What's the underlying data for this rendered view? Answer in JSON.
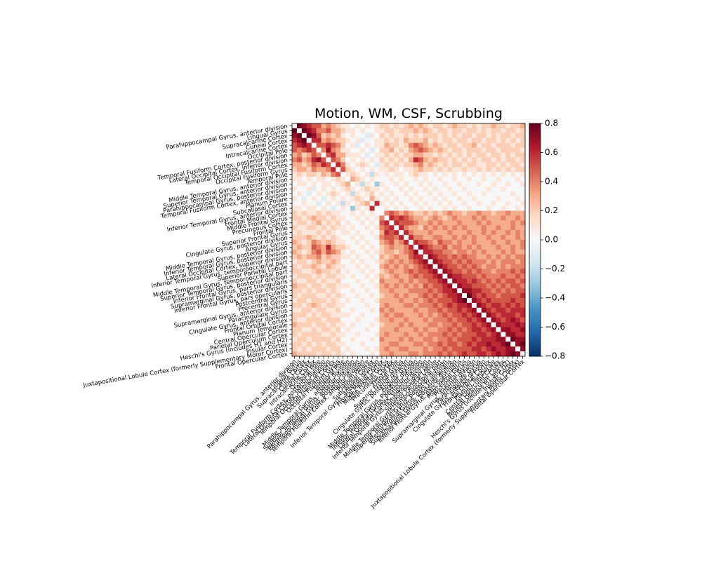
{
  "chart_data": {
    "type": "heatmap",
    "title": "Motion, WM, CSF, Scrubbing",
    "categories": [
      "Parahippocampal Gyrus, anterior division",
      "Lingual Gyrus",
      "Supracalcarine Cortex",
      "Cuneal Cortex",
      "Intracalcarine Cortex",
      "Occipital Pole",
      "Temporal Fusiform Cortex, posterior division",
      "Lateral Occipital Cortex, inferior division",
      "Temporal Occipital Fusiform Cortex",
      "Occipital Fusiform Gyrus",
      "Temporal Pole",
      "Middle Temporal Gyrus, anterior division",
      "Superior Temporal Gyrus, anterior division",
      "Parahippocampal Gyrus, posterior division",
      "Temporal Fusiform Cortex, anterior division",
      "Planum Polare",
      "Subcallosal Cortex",
      "Inferior Temporal Gyrus, anterior division",
      "Frontal Medial Cortex",
      "Middle Frontal Gyrus",
      "Precuneous Cortex",
      "Frontal Pole",
      "Superior Frontal Gyrus",
      "Cingulate Gyrus, posterior division",
      "Angular Gyrus",
      "Middle Temporal Gyrus, posterior division",
      "Inferior Temporal Gyrus, posterior division",
      "Lateral Occipital Cortex, superior division",
      "Inferior Temporal Gyrus, temporooccipital part",
      "Superior Parietal Lobule",
      "Middle Temporal Gyrus, temporooccipital part",
      "Superior Temporal Gyrus, posterior division",
      "Inferior Frontal Gyrus, pars triangularis",
      "Supramarginal Gyrus, posterior division",
      "Inferior Frontal Gyrus, pars opercularis",
      "Postcentral Gyrus",
      "Precentral Gyrus",
      "Supramarginal Gyrus, anterior division",
      "Paracingulate Gyrus",
      "Cingulate Gyrus, anterior division",
      "Frontal Orbital Cortex",
      "Planum Temporale",
      "Central Opercular Cortex",
      "Parietal Operculum Cortex",
      "Heschl's Gyrus (includes H1 and H2)",
      "Insular Cortex",
      "Juxtapositional Lobule Cortex (formerly Supplementary Motor Cortex)",
      "Frontal Opercular Cortex"
    ],
    "values": [
      [
        0
      ],
      [
        0.8,
        0
      ],
      [
        0.7,
        0.8,
        0
      ],
      [
        0.6,
        0.7,
        0.8,
        0
      ],
      [
        0.5,
        0.6,
        0.7,
        0.6,
        0
      ],
      [
        0.5,
        0.4,
        0.5,
        0.6,
        0.5,
        0
      ],
      [
        0.3,
        0.4,
        0.2,
        0.3,
        0.5,
        0.4,
        0
      ],
      [
        0.4,
        0.5,
        0.3,
        0.4,
        0.6,
        0.7,
        0.5,
        0
      ],
      [
        0.3,
        0.3,
        0.2,
        0.3,
        0.5,
        0.4,
        0.6,
        0.5,
        0
      ],
      [
        0.2,
        0.3,
        0.3,
        0.2,
        0.4,
        0.3,
        0.3,
        0.4,
        0.6,
        0
      ],
      [
        0.1,
        0.2,
        0.1,
        0.2,
        0.2,
        0.1,
        0.3,
        0.2,
        0.4,
        0.5,
        0
      ],
      [
        0.1,
        0.1,
        0.0,
        0.1,
        0.0,
        0.1,
        0.1,
        0.0,
        0.1,
        0.2,
        0.1,
        0
      ],
      [
        0.0,
        0.1,
        0.1,
        0.0,
        0.1,
        0.0,
        0.1,
        0.1,
        0.0,
        0.1,
        0.2,
        0.3,
        0
      ],
      [
        0.1,
        0.0,
        0.0,
        0.1,
        -0.1,
        0.0,
        0.1,
        0.0,
        0.1,
        0.0,
        0.1,
        0.2,
        0.1,
        0
      ],
      [
        0.0,
        0.1,
        0.0,
        -0.1,
        0.0,
        0.1,
        0.0,
        0.1,
        0.2,
        0.1,
        0.0,
        0.1,
        -0.2,
        0.1,
        0
      ],
      [
        0.1,
        0.0,
        -0.1,
        0.0,
        0.1,
        0.0,
        -0.1,
        0.0,
        0.1,
        0.0,
        0.1,
        0.0,
        0.1,
        0.2,
        0.1,
        0
      ],
      [
        0.0,
        0.0,
        0.1,
        0.0,
        0.0,
        -0.1,
        0.0,
        0.1,
        0.0,
        0.1,
        -0.2,
        0.1,
        0.0,
        0.1,
        0.2,
        0.3,
        0
      ],
      [
        0.1,
        0.1,
        0.0,
        0.1,
        0.1,
        0.0,
        0.1,
        0.0,
        -0.1,
        0.0,
        0.1,
        0.0,
        -0.3,
        0.1,
        0.0,
        0.1,
        0.6,
        0
      ],
      [
        0.2,
        0.1,
        0.2,
        0.1,
        0.1,
        0.2,
        0.1,
        0.2,
        0.1,
        0.1,
        0.0,
        0.0,
        0.1,
        0.0,
        0.1,
        0.0,
        0.1,
        0.0,
        0
      ],
      [
        0.2,
        0.2,
        0.1,
        0.2,
        0.3,
        0.2,
        0.2,
        0.1,
        0.2,
        0.1,
        0.1,
        0.0,
        0.0,
        0.1,
        0.0,
        0.1,
        0.0,
        0.1,
        0.4,
        0
      ],
      [
        0.1,
        0.2,
        0.2,
        0.1,
        0.2,
        0.3,
        0.1,
        0.2,
        0.1,
        0.2,
        0.0,
        0.1,
        0.0,
        0.0,
        0.1,
        0.0,
        0.1,
        0.0,
        0.5,
        0.6,
        0
      ],
      [
        0.2,
        0.1,
        0.1,
        0.2,
        0.2,
        0.1,
        0.2,
        0.1,
        0.2,
        0.1,
        0.1,
        0.0,
        0.1,
        0.0,
        0.0,
        0.1,
        0.0,
        0.1,
        0.4,
        0.5,
        0.6,
        0
      ],
      [
        0.1,
        0.2,
        0.1,
        0.1,
        0.1,
        0.2,
        0.1,
        0.2,
        0.1,
        0.0,
        0.1,
        0.1,
        0.0,
        0.1,
        0.0,
        0.0,
        0.1,
        0.0,
        0.3,
        0.6,
        0.5,
        0.6,
        0
      ],
      [
        0.2,
        0.2,
        0.2,
        0.3,
        0.2,
        0.1,
        0.2,
        0.1,
        0.2,
        0.1,
        0.0,
        0.0,
        0.1,
        0.0,
        0.1,
        0.0,
        0.0,
        0.1,
        0.4,
        0.5,
        0.5,
        0.4,
        0.6,
        0
      ],
      [
        0.3,
        0.2,
        0.1,
        0.2,
        0.4,
        0.3,
        0.2,
        0.3,
        0.2,
        0.1,
        0.1,
        0.0,
        0.0,
        0.1,
        0.0,
        0.1,
        0.0,
        0.0,
        0.3,
        0.4,
        0.5,
        0.3,
        0.4,
        0.6,
        0
      ],
      [
        0.2,
        0.3,
        0.2,
        0.2,
        0.5,
        0.4,
        0.3,
        0.6,
        0.3,
        0.2,
        0.2,
        0.1,
        0.0,
        0.0,
        0.1,
        0.0,
        0.1,
        0.0,
        0.2,
        0.3,
        0.4,
        0.3,
        0.3,
        0.4,
        0.6,
        0
      ],
      [
        0.3,
        0.2,
        0.1,
        0.2,
        0.4,
        0.5,
        0.3,
        0.5,
        0.4,
        0.3,
        0.1,
        0.0,
        0.1,
        0.0,
        0.0,
        0.1,
        0.0,
        0.1,
        0.2,
        0.3,
        0.3,
        0.2,
        0.3,
        0.4,
        0.5,
        0.7,
        0
      ],
      [
        0.2,
        0.3,
        0.2,
        0.3,
        0.3,
        0.4,
        0.2,
        0.3,
        0.2,
        0.2,
        0.1,
        0.1,
        0.0,
        0.1,
        0.0,
        0.0,
        0.1,
        0.0,
        0.3,
        0.2,
        0.3,
        0.4,
        0.3,
        0.3,
        0.5,
        0.6,
        0.6,
        0
      ],
      [
        0.1,
        0.2,
        0.2,
        0.1,
        0.2,
        0.3,
        0.2,
        0.2,
        0.3,
        0.2,
        0.0,
        0.0,
        0.1,
        0.0,
        0.1,
        0.0,
        0.0,
        0.1,
        0.2,
        0.3,
        0.4,
        0.3,
        0.4,
        0.3,
        0.4,
        0.5,
        0.6,
        0.7,
        0
      ],
      [
        0.2,
        0.1,
        0.2,
        0.2,
        0.3,
        0.2,
        0.1,
        0.3,
        0.2,
        0.1,
        0.1,
        0.0,
        0.0,
        0.1,
        0.0,
        0.1,
        0.0,
        0.0,
        0.3,
        0.4,
        0.3,
        0.4,
        0.3,
        0.4,
        0.3,
        0.4,
        0.5,
        0.6,
        0.7,
        0
      ],
      [
        0.2,
        0.2,
        0.1,
        0.1,
        0.2,
        0.3,
        0.2,
        0.2,
        0.1,
        0.2,
        0.0,
        0.1,
        0.0,
        0.0,
        0.1,
        0.0,
        0.1,
        0.0,
        0.2,
        0.3,
        0.4,
        0.3,
        0.3,
        0.4,
        0.5,
        0.4,
        0.5,
        0.5,
        0.6,
        0.7,
        0
      ],
      [
        0.1,
        0.2,
        0.2,
        0.2,
        0.1,
        0.2,
        0.1,
        0.2,
        0.2,
        0.1,
        0.1,
        0.0,
        0.1,
        0.0,
        0.0,
        0.1,
        0.0,
        0.1,
        0.3,
        0.2,
        0.3,
        0.4,
        0.3,
        0.3,
        0.4,
        0.5,
        0.4,
        0.5,
        0.5,
        0.6,
        0.7,
        0
      ],
      [
        0.2,
        0.1,
        0.1,
        0.2,
        0.2,
        0.1,
        0.2,
        0.1,
        0.1,
        0.2,
        0.0,
        0.0,
        0.0,
        0.1,
        0.0,
        0.0,
        0.1,
        0.0,
        0.4,
        0.3,
        0.3,
        0.3,
        0.4,
        0.3,
        0.4,
        0.3,
        0.4,
        0.4,
        0.5,
        0.5,
        0.6,
        0.7,
        0
      ],
      [
        0.3,
        0.2,
        0.2,
        0.1,
        0.2,
        0.2,
        0.1,
        0.2,
        0.2,
        0.1,
        0.1,
        0.1,
        0.0,
        0.0,
        0.1,
        0.0,
        0.0,
        0.1,
        0.3,
        0.4,
        0.3,
        0.4,
        0.3,
        0.4,
        0.3,
        0.4,
        0.3,
        0.5,
        0.4,
        0.5,
        0.5,
        0.6,
        0.7,
        0
      ],
      [
        0.2,
        0.2,
        0.1,
        0.2,
        0.1,
        0.2,
        0.2,
        0.1,
        0.2,
        0.1,
        0.0,
        0.0,
        0.1,
        0.0,
        0.0,
        0.1,
        0.0,
        0.0,
        0.3,
        0.3,
        0.4,
        0.3,
        0.3,
        0.3,
        0.4,
        0.4,
        0.4,
        0.4,
        0.5,
        0.4,
        0.5,
        0.6,
        0.6,
        0.7,
        0
      ],
      [
        0.2,
        0.1,
        0.2,
        0.2,
        0.2,
        0.1,
        0.1,
        0.2,
        0.1,
        0.2,
        0.1,
        0.0,
        0.0,
        0.1,
        0.0,
        0.0,
        0.1,
        0.0,
        0.2,
        0.3,
        0.3,
        0.4,
        0.3,
        0.4,
        0.3,
        0.3,
        0.4,
        0.5,
        0.4,
        0.5,
        0.4,
        0.5,
        0.6,
        0.6,
        0.7,
        0
      ],
      [
        0.1,
        0.2,
        0.2,
        0.1,
        0.2,
        0.2,
        0.2,
        0.1,
        0.2,
        0.1,
        0.0,
        0.1,
        0.0,
        0.0,
        0.1,
        0.0,
        0.0,
        0.1,
        0.3,
        0.3,
        0.3,
        0.3,
        0.4,
        0.3,
        0.3,
        0.4,
        0.3,
        0.4,
        0.5,
        0.4,
        0.5,
        0.5,
        0.5,
        0.6,
        0.7,
        0.8,
        0
      ],
      [
        0.2,
        0.2,
        0.1,
        0.2,
        0.3,
        0.2,
        0.1,
        0.2,
        0.2,
        0.1,
        0.1,
        0.0,
        0.0,
        0.0,
        0.0,
        0.1,
        0.0,
        0.0,
        0.3,
        0.4,
        0.3,
        0.3,
        0.3,
        0.4,
        0.4,
        0.3,
        0.4,
        0.4,
        0.4,
        0.5,
        0.4,
        0.5,
        0.6,
        0.5,
        0.6,
        0.6,
        0.7,
        0
      ],
      [
        0.1,
        0.1,
        0.2,
        0.2,
        0.1,
        0.2,
        0.2,
        0.1,
        0.1,
        0.2,
        0.0,
        0.0,
        0.1,
        0.0,
        0.0,
        0.0,
        0.1,
        0.0,
        0.4,
        0.3,
        0.4,
        0.3,
        0.3,
        0.3,
        0.3,
        0.4,
        0.3,
        0.3,
        0.4,
        0.4,
        0.5,
        0.4,
        0.5,
        0.5,
        0.6,
        0.5,
        0.6,
        0.7,
        0
      ],
      [
        0.2,
        0.2,
        0.2,
        0.1,
        0.2,
        0.1,
        0.2,
        0.2,
        0.1,
        0.1,
        0.1,
        0.1,
        0.0,
        0.0,
        0.1,
        0.0,
        0.0,
        0.0,
        0.3,
        0.4,
        0.3,
        0.4,
        0.4,
        0.3,
        0.3,
        0.3,
        0.4,
        0.3,
        0.4,
        0.3,
        0.4,
        0.5,
        0.4,
        0.5,
        0.5,
        0.6,
        0.5,
        0.6,
        0.7,
        0
      ],
      [
        0.2,
        0.1,
        0.1,
        0.2,
        0.2,
        0.2,
        0.1,
        0.2,
        0.2,
        0.2,
        0.0,
        0.0,
        0.0,
        0.1,
        0.0,
        0.0,
        0.0,
        0.1,
        0.3,
        0.3,
        0.4,
        0.3,
        0.3,
        0.4,
        0.3,
        0.3,
        0.3,
        0.4,
        0.3,
        0.4,
        0.4,
        0.4,
        0.5,
        0.4,
        0.5,
        0.5,
        0.6,
        0.5,
        0.6,
        0.7,
        0
      ],
      [
        0.3,
        0.2,
        0.2,
        0.2,
        0.1,
        0.2,
        0.2,
        0.1,
        0.2,
        0.1,
        0.1,
        0.0,
        0.1,
        0.0,
        0.0,
        0.0,
        0.1,
        0.0,
        0.2,
        0.3,
        0.3,
        0.3,
        0.4,
        0.3,
        0.4,
        0.3,
        0.3,
        0.3,
        0.4,
        0.4,
        0.3,
        0.4,
        0.4,
        0.5,
        0.4,
        0.5,
        0.5,
        0.6,
        0.5,
        0.6,
        0.7,
        0
      ],
      [
        0.2,
        0.2,
        0.1,
        0.1,
        0.2,
        0.1,
        0.2,
        0.2,
        0.1,
        0.2,
        0.0,
        0.1,
        0.0,
        0.0,
        0.0,
        0.1,
        0.0,
        0.0,
        0.3,
        0.3,
        0.3,
        0.4,
        0.3,
        0.3,
        0.3,
        0.4,
        0.3,
        0.4,
        0.3,
        0.3,
        0.4,
        0.4,
        0.5,
        0.4,
        0.5,
        0.4,
        0.5,
        0.6,
        0.6,
        0.5,
        0.6,
        0.7,
        0
      ],
      [
        0.2,
        0.1,
        0.2,
        0.2,
        0.2,
        0.2,
        0.1,
        0.1,
        0.2,
        0.1,
        0.1,
        0.0,
        0.0,
        0.1,
        0.0,
        0.0,
        0.0,
        0.1,
        0.3,
        0.4,
        0.3,
        0.3,
        0.3,
        0.4,
        0.3,
        0.3,
        0.4,
        0.3,
        0.4,
        0.4,
        0.4,
        0.5,
        0.4,
        0.5,
        0.4,
        0.5,
        0.5,
        0.5,
        0.6,
        0.6,
        0.5,
        0.6,
        0.7,
        0
      ],
      [
        0.1,
        0.2,
        0.2,
        0.1,
        0.2,
        0.2,
        0.2,
        0.2,
        0.1,
        0.2,
        0.0,
        0.0,
        0.1,
        0.0,
        0.0,
        0.0,
        0.1,
        0.0,
        0.4,
        0.3,
        0.3,
        0.3,
        0.4,
        0.3,
        0.4,
        0.3,
        0.3,
        0.4,
        0.4,
        0.3,
        0.4,
        0.4,
        0.5,
        0.4,
        0.5,
        0.5,
        0.5,
        0.6,
        0.5,
        0.6,
        0.6,
        0.6,
        0.7,
        0.7,
        0
      ],
      [
        0.2,
        0.2,
        0.1,
        0.2,
        0.1,
        0.2,
        0.1,
        0.2,
        0.2,
        0.1,
        0.1,
        0.0,
        0.0,
        0.0,
        0.1,
        0.0,
        0.0,
        0.0,
        0.3,
        0.3,
        0.4,
        0.4,
        0.3,
        0.3,
        0.3,
        0.4,
        0.4,
        0.3,
        0.4,
        0.4,
        0.5,
        0.4,
        0.5,
        0.5,
        0.4,
        0.5,
        0.6,
        0.5,
        0.6,
        0.6,
        0.7,
        0.6,
        0.6,
        0.7,
        0.8,
        0
      ],
      [
        0.2,
        0.1,
        0.2,
        0.1,
        0.2,
        0.2,
        0.2,
        0.1,
        0.2,
        0.2,
        0.0,
        0.1,
        0.0,
        0.0,
        0.0,
        0.1,
        0.0,
        0.1,
        0.3,
        0.4,
        0.3,
        0.3,
        0.4,
        0.4,
        0.3,
        0.3,
        0.3,
        0.4,
        0.3,
        0.4,
        0.4,
        0.5,
        0.4,
        0.5,
        0.5,
        0.5,
        0.5,
        0.6,
        0.6,
        0.5,
        0.6,
        0.7,
        0.6,
        0.6,
        0.7,
        0.7,
        0
      ],
      [
        0.3,
        0.2,
        0.2,
        0.2,
        0.2,
        0.1,
        0.2,
        0.2,
        0.1,
        0.2,
        0.1,
        0.0,
        0.1,
        0.0,
        0.0,
        0.0,
        0.1,
        0.0,
        0.3,
        0.3,
        0.4,
        0.3,
        0.3,
        0.3,
        0.4,
        0.4,
        0.3,
        0.4,
        0.4,
        0.4,
        0.5,
        0.4,
        0.5,
        0.4,
        0.5,
        0.6,
        0.5,
        0.5,
        0.6,
        0.6,
        0.5,
        0.6,
        0.7,
        0.6,
        0.7,
        0.8,
        0.7,
        0
      ]
    ],
    "symmetric": true,
    "clim": [
      -0.8,
      0.8
    ],
    "cticks": [
      {
        "value": -0.8,
        "label": "−0.8"
      },
      {
        "value": -0.6,
        "label": "−0.6"
      },
      {
        "value": -0.4,
        "label": "−0.4"
      },
      {
        "value": -0.2,
        "label": "−0.2"
      },
      {
        "value": 0,
        "label": "0.0"
      },
      0.2,
      0.4,
      0.6,
      0.8
    ],
    "colormap": [
      "#053061",
      "#2166ac",
      "#4393c3",
      "#92c5de",
      "#d1e5f0",
      "#f7f7f7",
      "#fddbc7",
      "#f4a582",
      "#d6604d",
      "#b2182b",
      "#67001f"
    ]
  }
}
